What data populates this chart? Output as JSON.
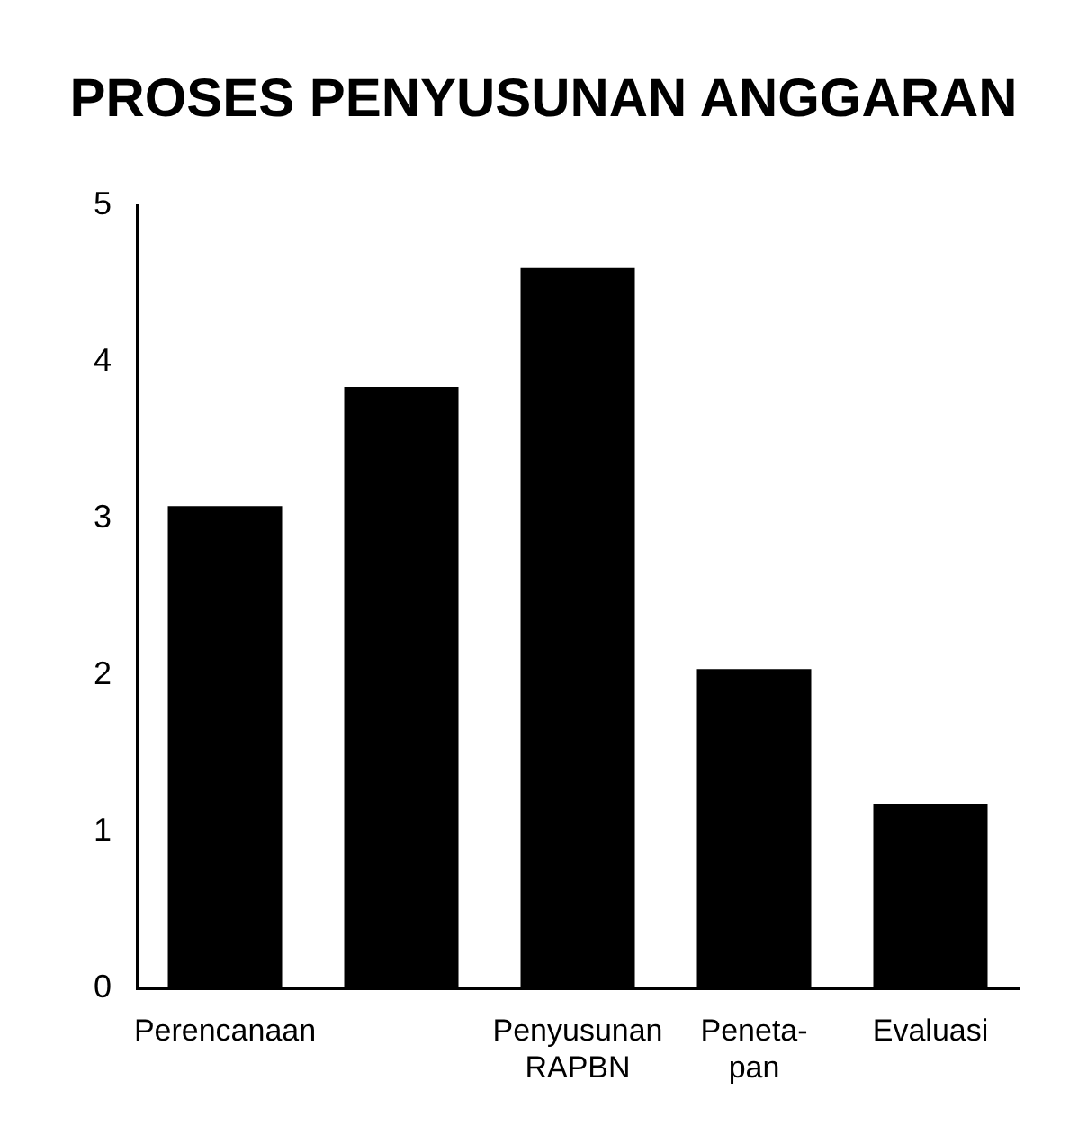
{
  "chart_data": {
    "type": "bar",
    "title": "PROSES PENYUSUNAN ANGGARAN",
    "categories": [
      "Perencanaan",
      null,
      "Penyusunan\nRAPBN",
      "Peneta-\npan",
      "Evaluasi"
    ],
    "values": [
      3.08,
      3.84,
      4.6,
      2.04,
      1.18
    ],
    "color": "#000000",
    "ylim": [
      0,
      5
    ],
    "yticks": [
      0,
      1,
      2,
      3,
      4,
      5
    ],
    "grid": false,
    "legend": false
  }
}
